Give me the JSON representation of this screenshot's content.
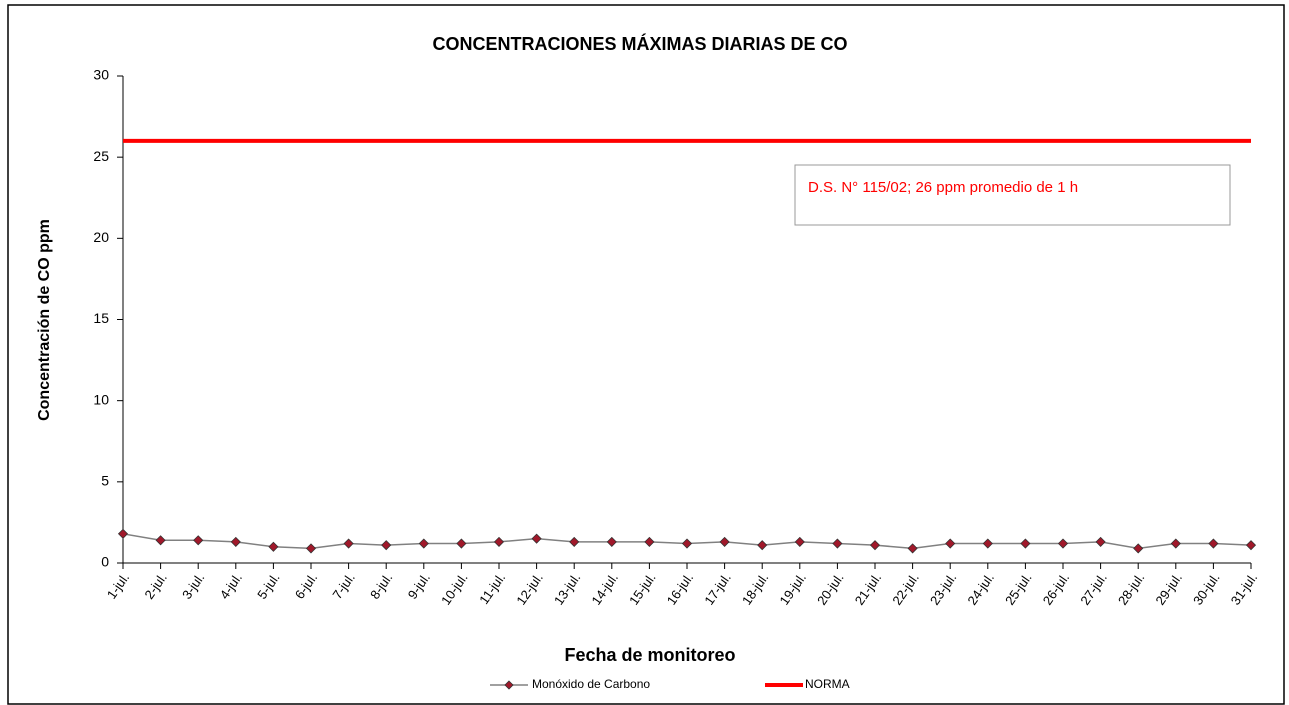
{
  "chart_data": {
    "type": "line",
    "title": "CONCENTRACIONES MÁXIMAS DIARIAS DE CO",
    "x_label": "Fecha de monitoreo",
    "y_label": "Concentración  de CO ppm",
    "categories": [
      "1-jul.",
      "2-jul.",
      "3-jul.",
      "4-jul.",
      "5-jul.",
      "6-jul.",
      "7-jul.",
      "8-jul.",
      "9-jul.",
      "10-jul.",
      "11-jul.",
      "12-jul.",
      "13-jul.",
      "14-jul.",
      "15-jul.",
      "16-jul.",
      "17-jul.",
      "18-jul.",
      "19-jul.",
      "20-jul.",
      "21-jul.",
      "22-jul.",
      "23-jul.",
      "24-jul.",
      "25-jul.",
      "26-jul.",
      "27-jul.",
      "28-jul.",
      "29-jul.",
      "30-jul.",
      "31-jul."
    ],
    "series": [
      {
        "name": "Monóxido de Carbono",
        "color": "#808080",
        "marker_color": "#a0182a",
        "values": [
          1.8,
          1.4,
          1.4,
          1.3,
          1.0,
          0.9,
          1.2,
          1.1,
          1.2,
          1.2,
          1.3,
          1.5,
          1.3,
          1.3,
          1.3,
          1.2,
          1.3,
          1.1,
          1.3,
          1.2,
          1.1,
          0.9,
          1.2,
          1.2,
          1.2,
          1.2,
          1.3,
          0.9,
          1.2,
          1.2,
          1.1
        ]
      }
    ],
    "reference_line": {
      "name": "NORMA",
      "value": 26,
      "color": "#ff0000"
    },
    "annotation": "D.S. N° 115/02;  26 ppm  promedio de 1 h",
    "ylim": [
      0,
      30
    ],
    "yticks": [
      0,
      5,
      10,
      15,
      20,
      25,
      30
    ],
    "grid": false
  }
}
